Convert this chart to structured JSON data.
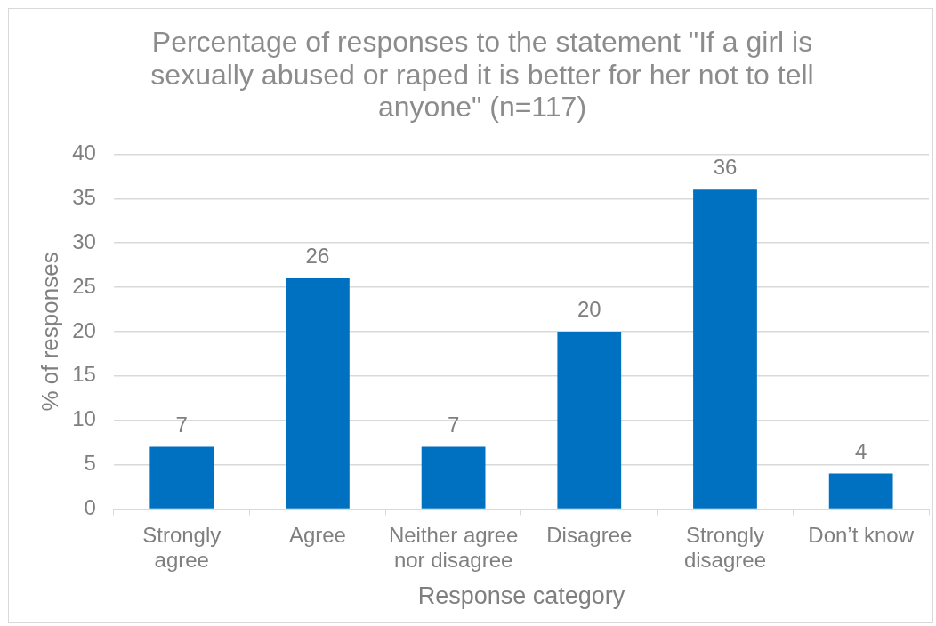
{
  "chart_data": {
    "type": "bar",
    "title": "Percentage of responses to the statement \"If a girl is sexually abused or raped it is better for her not to tell anyone\" (n=117)",
    "xlabel": "Response category",
    "ylabel": "% of responses",
    "categories": [
      "Strongly agree",
      "Agree",
      "Neither agree nor disagree",
      "Disagree",
      "Strongly disagree",
      "Don’t know"
    ],
    "values": [
      7,
      26,
      7,
      20,
      36,
      4
    ],
    "color": "#0070c0",
    "ylim": [
      0,
      40
    ],
    "yticks": [
      0,
      5,
      10,
      15,
      20,
      25,
      30,
      35,
      40
    ],
    "grid": "y",
    "data_labels": true
  }
}
